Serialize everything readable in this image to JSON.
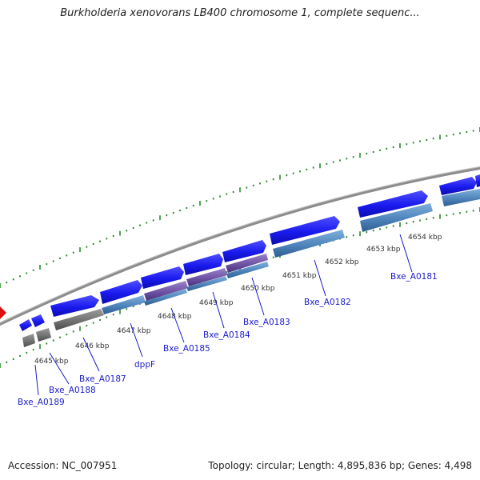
{
  "header": {
    "title": "Burkholderia xenovorans LB400 chromosome 1, complete sequenc..."
  },
  "footer": {
    "accession": "Accession: NC_007951",
    "summary": "Topology: circular; Length: 4,895,836 bp; Genes: 4,498"
  },
  "map": {
    "kbp_labels": [
      "4645 kbp",
      "4646 kbp",
      "4647 kbp",
      "4648 kbp",
      "4649 kbp",
      "4650 kbp",
      "4651 kbp",
      "4652 kbp",
      "4653 kbp",
      "4654 kbp"
    ],
    "gene_labels": [
      "Bxe_A0181",
      "Bxe_A0182",
      "Bxe_A0183",
      "Bxe_A0184",
      "Bxe_A0185",
      "dppF",
      "Bxe_A0187",
      "Bxe_A0188",
      "Bxe_A0189"
    ],
    "colors": {
      "cds": "#1a1aee",
      "gene_steel": "#4a80b8",
      "gene_purple": "#6a4fa0",
      "gene_gray": "#6f6f6f",
      "backbone": "#8c8c8c",
      "ticks": "#2a8a2a",
      "marker": "#dd1111"
    }
  }
}
